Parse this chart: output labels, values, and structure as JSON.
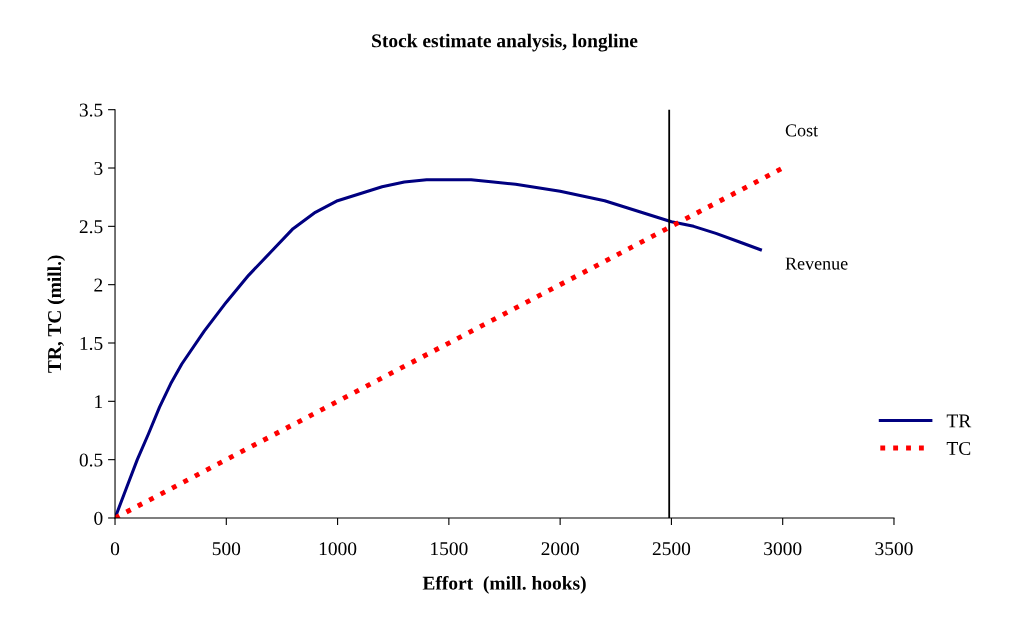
{
  "chart_data": {
    "type": "line",
    "title": "Stock estimate analysis, longline",
    "xlabel": "Effort  (mill. hooks)",
    "ylabel": "TR, TC (mill.)",
    "xlim": [
      0,
      3500
    ],
    "xticks": [
      0,
      500,
      1000,
      1500,
      2000,
      2500,
      3000,
      3500
    ],
    "ylim": [
      0,
      3.5
    ],
    "yticks": [
      0,
      0.5,
      1,
      1.5,
      2,
      2.5,
      3,
      3.5
    ],
    "grid": false,
    "legend": "right",
    "marker": "none",
    "series": [
      {
        "name": "TR",
        "color": "#000080",
        "line_style": "solid",
        "x": [
          0,
          50,
          100,
          150,
          200,
          250,
          300,
          400,
          500,
          600,
          700,
          800,
          900,
          1000,
          1100,
          1200,
          1300,
          1400,
          1500,
          1600,
          1700,
          1800,
          1900,
          2000,
          2100,
          2200,
          2300,
          2400,
          2500,
          2600,
          2700,
          2800,
          2900
        ],
        "values": [
          0,
          0.25,
          0.5,
          0.72,
          0.95,
          1.15,
          1.32,
          1.6,
          1.85,
          2.08,
          2.28,
          2.48,
          2.62,
          2.72,
          2.78,
          2.84,
          2.88,
          2.9,
          2.9,
          2.9,
          2.88,
          2.86,
          2.83,
          2.8,
          2.76,
          2.72,
          2.66,
          2.6,
          2.54,
          2.5,
          2.44,
          2.37,
          2.3
        ]
      },
      {
        "name": "TC",
        "color": "#ff0000",
        "line_style": "dotted",
        "x": [
          0,
          3000
        ],
        "values": [
          0,
          3
        ]
      }
    ],
    "ref_lines": [
      {
        "axis": "x",
        "value": 2490,
        "color": "#000000",
        "line_style": "solid"
      }
    ],
    "annotations": [
      "Cost",
      "Revenue"
    ]
  }
}
